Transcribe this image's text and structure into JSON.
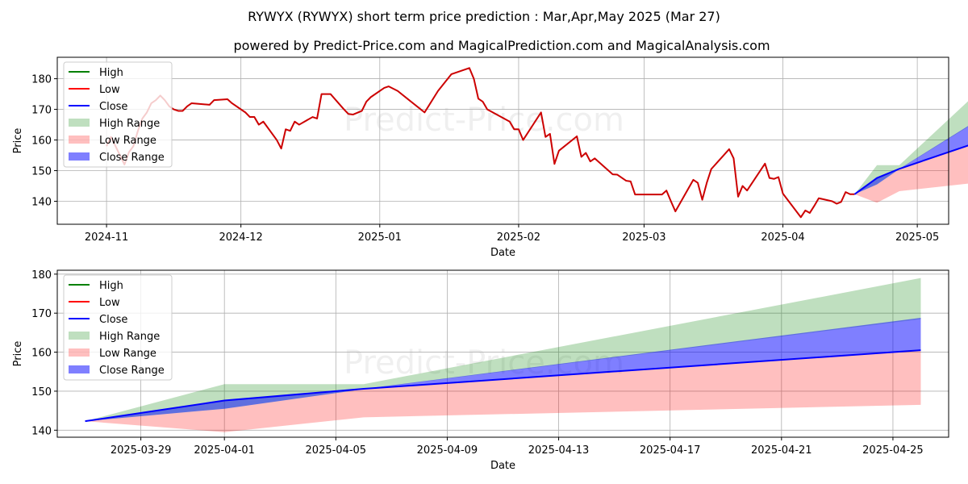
{
  "title": "RYWYX (RYWYX) short term price prediction : Mar,Apr,May 2025 (Mar 27)",
  "subtitle": "powered by Predict-Price.com and MagicalPrediction.com and MagicalAnalysis.com",
  "watermark": "Predict-Price.com",
  "colors": {
    "high": "#008000",
    "low": "#ff0000",
    "close": "#0000ff",
    "high_range": "#008000",
    "low_range": "#ff0000",
    "close_range": "#0000ff",
    "history": "#cc0000",
    "grid": "#b0b0b0"
  },
  "legend": [
    "High",
    "Low",
    "Close",
    "High Range",
    "Low Range",
    "Close Range"
  ],
  "chart_data": [
    {
      "type": "line",
      "name": "overview",
      "xlabel": "Date",
      "ylabel": "Price",
      "xlim": [
        "2024-10-21",
        "2025-05-08"
      ],
      "ylim": [
        132.5,
        187
      ],
      "x_ticks": [
        "2024-11-01",
        "2024-12-01",
        "2025-01-01",
        "2025-02-01",
        "2025-03-01",
        "2025-04-01",
        "2025-05-01"
      ],
      "x_tick_labels": [
        "2024-11",
        "2024-12",
        "2025-01",
        "2025-02",
        "2025-03",
        "2025-04",
        "2025-05"
      ],
      "y_ticks": [
        140,
        150,
        160,
        170,
        180
      ],
      "grid": true,
      "legend_position": "top-left",
      "history": {
        "name": "Low",
        "points": [
          [
            "2024-11-01",
            158
          ],
          [
            "2024-11-02",
            161
          ],
          [
            "2024-11-03",
            158
          ],
          [
            "2024-11-04",
            155
          ],
          [
            "2024-11-05",
            152
          ],
          [
            "2024-11-06",
            156
          ],
          [
            "2024-11-07",
            158
          ],
          [
            "2024-11-08",
            163
          ],
          [
            "2024-11-09",
            167
          ],
          [
            "2024-11-10",
            169
          ],
          [
            "2024-11-11",
            172
          ],
          [
            "2024-11-12",
            173
          ],
          [
            "2024-11-13",
            174.5
          ],
          [
            "2024-11-14",
            173
          ],
          [
            "2024-11-15",
            171
          ],
          [
            "2024-11-16",
            170
          ],
          [
            "2024-11-17",
            169.5
          ],
          [
            "2024-11-18",
            169.5
          ],
          [
            "2024-11-19",
            171
          ],
          [
            "2024-11-20",
            172
          ],
          [
            "2024-11-24",
            171.5
          ],
          [
            "2024-11-25",
            173
          ],
          [
            "2024-11-28",
            173.3
          ],
          [
            "2024-11-29",
            172
          ],
          [
            "2024-12-02",
            169
          ],
          [
            "2024-12-03",
            167.5
          ],
          [
            "2024-12-04",
            167.5
          ],
          [
            "2024-12-05",
            165
          ],
          [
            "2024-12-06",
            166
          ],
          [
            "2024-12-09",
            160
          ],
          [
            "2024-12-10",
            157.2
          ],
          [
            "2024-12-11",
            163.5
          ],
          [
            "2024-12-12",
            163
          ],
          [
            "2024-12-13",
            166
          ],
          [
            "2024-12-14",
            165
          ],
          [
            "2024-12-17",
            167.5
          ],
          [
            "2024-12-18",
            167
          ],
          [
            "2024-12-19",
            175
          ],
          [
            "2024-12-21",
            175
          ],
          [
            "2024-12-24",
            170
          ],
          [
            "2024-12-25",
            168.5
          ],
          [
            "2024-12-26",
            168.3
          ],
          [
            "2024-12-28",
            169.5
          ],
          [
            "2024-12-29",
            172.5
          ],
          [
            "2024-12-30",
            174
          ],
          [
            "2025-01-02",
            177
          ],
          [
            "2025-01-03",
            177.5
          ],
          [
            "2025-01-05",
            176
          ],
          [
            "2025-01-11",
            169
          ],
          [
            "2025-01-14",
            176
          ],
          [
            "2025-01-17",
            181.5
          ],
          [
            "2025-01-21",
            183.5
          ],
          [
            "2025-01-22",
            180
          ],
          [
            "2025-01-23",
            173.5
          ],
          [
            "2025-01-24",
            172.5
          ],
          [
            "2025-01-25",
            170
          ],
          [
            "2025-01-30",
            166
          ],
          [
            "2025-01-31",
            163.5
          ],
          [
            "2025-02-01",
            163.5
          ],
          [
            "2025-02-02",
            160
          ],
          [
            "2025-02-06",
            169
          ],
          [
            "2025-02-07",
            161
          ],
          [
            "2025-02-08",
            162
          ],
          [
            "2025-02-09",
            152.2
          ],
          [
            "2025-02-10",
            156.5
          ],
          [
            "2025-02-14",
            161.2
          ],
          [
            "2025-02-15",
            154.5
          ],
          [
            "2025-02-16",
            155.8
          ],
          [
            "2025-02-17",
            153
          ],
          [
            "2025-02-18",
            154
          ],
          [
            "2025-02-22",
            148.8
          ],
          [
            "2025-02-23",
            148.7
          ],
          [
            "2025-02-25",
            146.7
          ],
          [
            "2025-02-26",
            146.5
          ],
          [
            "2025-02-27",
            142.2
          ],
          [
            "2025-03-05",
            142.2
          ],
          [
            "2025-03-06",
            143.5
          ],
          [
            "2025-03-07",
            140
          ],
          [
            "2025-03-08",
            136.7
          ],
          [
            "2025-03-12",
            147
          ],
          [
            "2025-03-13",
            146
          ],
          [
            "2025-03-14",
            140.5
          ],
          [
            "2025-03-15",
            146
          ],
          [
            "2025-03-16",
            150.5
          ],
          [
            "2025-03-20",
            157
          ],
          [
            "2025-03-21",
            154
          ],
          [
            "2025-03-22",
            141.5
          ],
          [
            "2025-03-23",
            145
          ],
          [
            "2025-03-24",
            143.5
          ],
          [
            "2025-03-28",
            152.3
          ],
          [
            "2025-03-29",
            147.6
          ],
          [
            "2025-03-30",
            147.3
          ],
          [
            "2025-03-31",
            147.9
          ],
          [
            "2025-04-01",
            142.5
          ],
          [
            "2025-04-05",
            134.8
          ],
          [
            "2025-04-06",
            137
          ],
          [
            "2025-04-07",
            136.2
          ],
          [
            "2025-04-08",
            138.5
          ],
          [
            "2025-04-09",
            141
          ],
          [
            "2025-04-12",
            140
          ],
          [
            "2025-04-13",
            139.2
          ],
          [
            "2025-04-14",
            139.8
          ],
          [
            "2025-04-15",
            143
          ],
          [
            "2025-04-16",
            142.3
          ],
          [
            "2025-04-17",
            142.3
          ]
        ]
      },
      "forecast": {
        "x": [
          "2025-04-17",
          "2025-04-22",
          "2025-04-27",
          "2025-05-17"
        ],
        "close": [
          142.3,
          147.6,
          150.6,
          160.5
        ],
        "high_range": {
          "lower": [
            142.3,
            145.5,
            150.5,
            168.5
          ],
          "upper": [
            142.3,
            151.8,
            151.8,
            179
          ]
        },
        "low_range": {
          "lower": [
            142.3,
            139.5,
            143.3,
            146.5
          ],
          "upper": [
            142.3,
            145.5,
            150.5,
            160.5
          ]
        },
        "close_range": {
          "lower": [
            142.3,
            145.5,
            150.5,
            160.5
          ],
          "upper": [
            142.3,
            147.6,
            150.6,
            168.8
          ]
        }
      }
    },
    {
      "type": "area",
      "name": "forecast-detail",
      "xlabel": "Date",
      "ylabel": "Price",
      "xlim": [
        "2025-03-26",
        "2025-04-27"
      ],
      "ylim": [
        138.2,
        181
      ],
      "x_ticks": [
        "2025-03-29",
        "2025-04-01",
        "2025-04-05",
        "2025-04-09",
        "2025-04-13",
        "2025-04-17",
        "2025-04-21",
        "2025-04-25"
      ],
      "x_tick_labels": [
        "2025-03-29",
        "2025-04-01",
        "2025-04-05",
        "2025-04-09",
        "2025-04-13",
        "2025-04-17",
        "2025-04-21",
        "2025-04-25"
      ],
      "y_ticks": [
        140,
        150,
        160,
        170,
        180
      ],
      "grid": true,
      "legend_position": "top-left",
      "forecast": {
        "x": [
          "2025-03-27",
          "2025-04-01",
          "2025-04-06",
          "2025-04-26"
        ],
        "close": [
          142.3,
          147.6,
          150.6,
          160.5
        ],
        "high_range": {
          "lower": [
            142.3,
            145.5,
            150.5,
            168.5
          ],
          "upper": [
            142.3,
            151.8,
            151.8,
            179
          ]
        },
        "low_range": {
          "lower": [
            142.3,
            139.5,
            143.3,
            146.5
          ],
          "upper": [
            142.3,
            145.5,
            150.5,
            160.5
          ]
        },
        "close_range": {
          "lower": [
            142.3,
            145.5,
            150.5,
            160.5
          ],
          "upper": [
            142.3,
            147.6,
            150.6,
            168.8
          ]
        }
      }
    }
  ]
}
